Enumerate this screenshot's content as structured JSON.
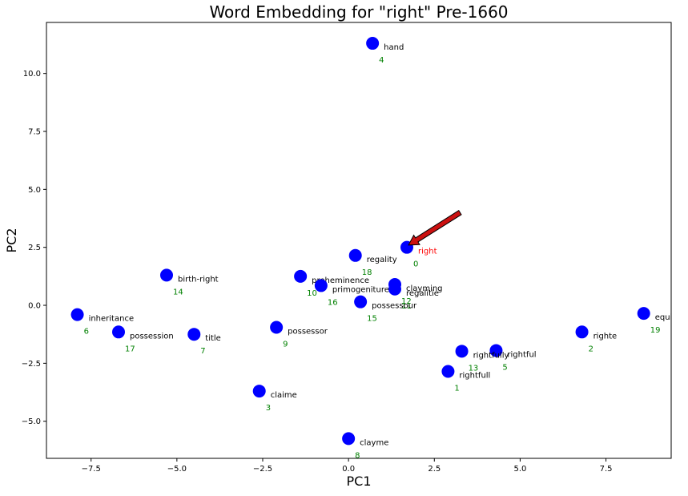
{
  "chart_data": {
    "type": "scatter",
    "title": "Word Embedding for \"right\" Pre-1660",
    "xlabel": "PC1",
    "ylabel": "PC2",
    "xlim": [
      -8.8,
      9.4
    ],
    "ylim": [
      -6.6,
      12.2
    ],
    "xticks": [
      -7.5,
      -5.0,
      -2.5,
      0.0,
      2.5,
      5.0,
      7.5
    ],
    "xtick_labels": [
      "−7.5",
      "−5.0",
      "−2.5",
      "0.0",
      "2.5",
      "5.0",
      "7.5"
    ],
    "yticks": [
      -5.0,
      -2.5,
      0.0,
      2.5,
      5.0,
      7.5,
      10.0
    ],
    "ytick_labels": [
      "−5.0",
      "−2.5",
      "0.0",
      "2.5",
      "5.0",
      "7.5",
      "10.0"
    ],
    "grid": false,
    "marker_color": "#0000ff",
    "label_color": "#000000",
    "highlight_color": "#ff0000",
    "index_color": "#008000",
    "arrow_color": "#cc1111",
    "points": [
      {
        "word": "right",
        "index": "0",
        "x": 1.7,
        "y": 2.5,
        "highlight": true
      },
      {
        "word": "rightfull",
        "index": "1",
        "x": 2.9,
        "y": -2.85
      },
      {
        "word": "righte",
        "index": "2",
        "x": 6.8,
        "y": -1.15
      },
      {
        "word": "claime",
        "index": "3",
        "x": -2.6,
        "y": -3.7
      },
      {
        "word": "hand",
        "index": "4",
        "x": 0.7,
        "y": 11.3
      },
      {
        "word": "rightful",
        "index": "5",
        "x": 4.3,
        "y": -1.95
      },
      {
        "word": "inheritance",
        "index": "6",
        "x": -7.9,
        "y": -0.4
      },
      {
        "word": "title",
        "index": "7",
        "x": -4.5,
        "y": -1.25
      },
      {
        "word": "clayme",
        "index": "8",
        "x": 0.0,
        "y": -5.75
      },
      {
        "word": "possessor",
        "index": "9",
        "x": -2.1,
        "y": -0.95
      },
      {
        "word": "preheminence",
        "index": "10",
        "x": -1.4,
        "y": 1.25
      },
      {
        "word": "regalitie",
        "index": "11",
        "x": 1.35,
        "y": 0.7
      },
      {
        "word": "clayming",
        "index": "12",
        "x": 1.35,
        "y": 0.9
      },
      {
        "word": "rightfully",
        "index": "13",
        "x": 3.3,
        "y": -1.98
      },
      {
        "word": "birth-right",
        "index": "14",
        "x": -5.3,
        "y": 1.3
      },
      {
        "word": "possessour",
        "index": "15",
        "x": 0.35,
        "y": 0.15
      },
      {
        "word": "primogeniture",
        "index": "16",
        "x": -0.8,
        "y": 0.85
      },
      {
        "word": "possession",
        "index": "17",
        "x": -6.7,
        "y": -1.15
      },
      {
        "word": "regality",
        "index": "18",
        "x": 0.2,
        "y": 2.15
      },
      {
        "word": "equitie",
        "index": "19",
        "x": 8.6,
        "y": -0.35
      }
    ],
    "arrow": {
      "from": [
        3.25,
        4.0
      ],
      "to": [
        1.75,
        2.6
      ]
    }
  }
}
